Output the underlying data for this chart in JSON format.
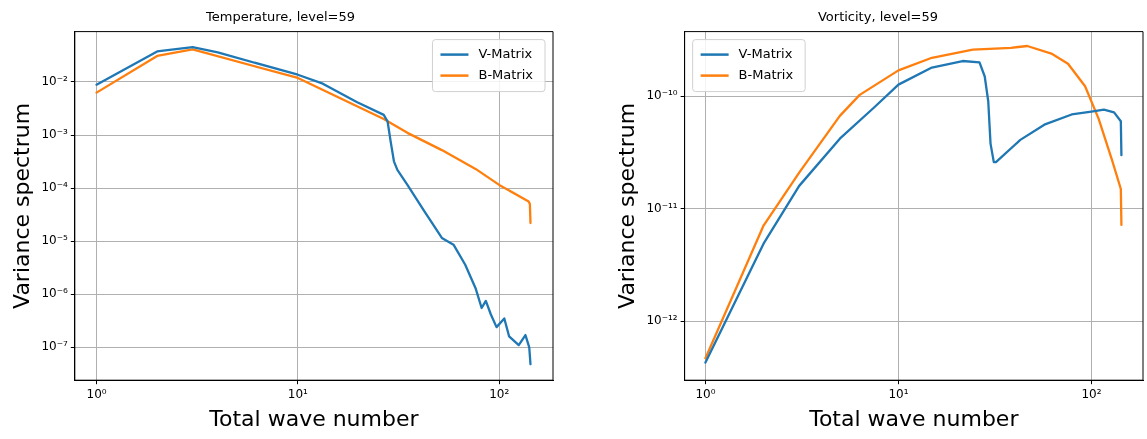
{
  "chart_data": [
    {
      "type": "line",
      "title": "Temperature, level=59",
      "xlabel": "Total wave number",
      "ylabel": "Variance spectrum",
      "log": "xy",
      "grid": true,
      "legend": "top right",
      "xlim": [
        0.78,
        185
      ],
      "ylim": [
        2.4e-08,
        0.089
      ],
      "xticks": [
        {
          "value": 1,
          "label": "10⁰"
        },
        {
          "value": 10,
          "label": "10¹"
        },
        {
          "value": 100,
          "label": "10²"
        }
      ],
      "yticks": [
        {
          "value": 1e-07,
          "label": "10⁻⁷"
        },
        {
          "value": 1e-06,
          "label": "10⁻⁶"
        },
        {
          "value": 1e-05,
          "label": "10⁻⁵"
        },
        {
          "value": 0.0001,
          "label": "10⁻⁴"
        },
        {
          "value": 0.001,
          "label": "10⁻³"
        },
        {
          "value": 0.01,
          "label": "10⁻²"
        }
      ],
      "series": [
        {
          "name": "V-Matrix",
          "color": "#1f77b4",
          "x": [
            1,
            2,
            3,
            4,
            10,
            13.3,
            19.6,
            26.7,
            27.9,
            28.9,
            30,
            31.2,
            35,
            42.6,
            51.9,
            59.3,
            67.8,
            76.3,
            81.8,
            85.8,
            90.8,
            97,
            106,
            112,
            125,
            135,
            141,
            143
          ],
          "values": [
            0.0089,
            0.0376,
            0.0455,
            0.036,
            0.0137,
            0.0093,
            0.0042,
            0.0024,
            0.0018,
            0.00075,
            0.00032,
            0.00022,
            0.000115,
            3.6e-05,
            1.15e-05,
            8.6e-06,
            3.6e-06,
            1.3e-06,
            5.5e-07,
            7.5e-07,
            4.2e-07,
            2.4e-07,
            3.5e-07,
            1.6e-07,
            1.1e-07,
            1.7e-07,
            1e-07,
            4.8e-08
          ]
        },
        {
          "name": "B-Matrix",
          "color": "#ff7f0e",
          "x": [
            1,
            2,
            3,
            10,
            26.7,
            35,
            51.9,
            76.3,
            100,
            140,
            142,
            143
          ],
          "values": [
            0.0063,
            0.031,
            0.041,
            0.0119,
            0.002,
            0.0011,
            0.00052,
            0.00023,
            0.000115,
            5.6e-05,
            5e-05,
            2.2e-05
          ]
        }
      ]
    },
    {
      "type": "line",
      "title": "Vorticity, level=59",
      "xlabel": "Total wave number",
      "ylabel": "Variance spectrum",
      "log": "xy",
      "grid": true,
      "legend": "top left",
      "xlim": [
        0.78,
        185
      ],
      "ylim": [
        3.1e-13,
        3.76e-10
      ],
      "xticks": [
        {
          "value": 1,
          "label": "10⁰"
        },
        {
          "value": 10,
          "label": "10¹"
        },
        {
          "value": 100,
          "label": "10²"
        }
      ],
      "yticks": [
        {
          "value": 1e-12,
          "label": "10⁻¹²"
        },
        {
          "value": 1e-11,
          "label": "10⁻¹¹"
        },
        {
          "value": 1e-10,
          "label": "10⁻¹⁰"
        }
      ],
      "series": [
        {
          "name": "V-Matrix",
          "color": "#1f77b4",
          "x": [
            1,
            2,
            3.06,
            4.97,
            7.5,
            10,
            14.9,
            21.5,
            26.3,
            28,
            29.2,
            30,
            31.2,
            32,
            42.8,
            57,
            79,
            100,
            116,
            131,
            142,
            143
          ],
          "values": [
            4.3e-13,
            4.9e-12,
            1.6e-11,
            4.2e-11,
            8e-11,
            1.27e-10,
            1.8e-10,
            2.06e-10,
            2e-10,
            1.5e-10,
            9e-11,
            3.8e-11,
            2.6e-11,
            2.6e-11,
            4.1e-11,
            5.6e-11,
            6.9e-11,
            7.3e-11,
            7.6e-11,
            7.2e-11,
            6e-11,
            3e-11
          ]
        },
        {
          "name": "B-Matrix",
          "color": "#ff7f0e",
          "x": [
            1,
            2,
            3.06,
            4.97,
            6.3,
            10,
            14.9,
            24.3,
            38.3,
            46.5,
            62,
            75.6,
            92.7,
            109,
            128,
            142,
            143
          ],
          "values": [
            4.7e-13,
            7.1e-12,
            2.1e-11,
            6.7e-11,
            1.03e-10,
            1.7e-10,
            2.2e-10,
            2.6e-10,
            2.7e-10,
            2.8e-10,
            2.4e-10,
            1.95e-10,
            1.23e-10,
            6.3e-11,
            2.7e-11,
            1.5e-11,
            7.2e-12
          ]
        }
      ]
    }
  ]
}
